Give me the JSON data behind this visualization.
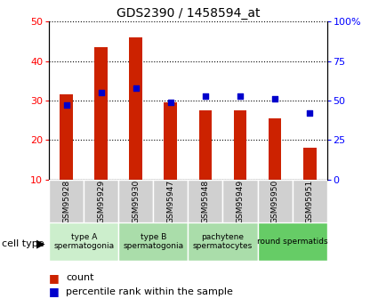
{
  "title": "GDS2390 / 1458594_at",
  "samples": [
    "GSM95928",
    "GSM95929",
    "GSM95930",
    "GSM95947",
    "GSM95948",
    "GSM95949",
    "GSM95950",
    "GSM95951"
  ],
  "counts": [
    31.5,
    43.5,
    46.0,
    29.5,
    27.5,
    27.5,
    25.5,
    18.0
  ],
  "percentiles": [
    47,
    55,
    58,
    49,
    53,
    53,
    51,
    42
  ],
  "ylim_left": [
    10,
    50
  ],
  "ylim_right": [
    0,
    100
  ],
  "yticks_left": [
    10,
    20,
    30,
    40,
    50
  ],
  "yticks_right": [
    0,
    25,
    50,
    75,
    100
  ],
  "bar_color": "#cc2200",
  "dot_color": "#0000cc",
  "groups": [
    {
      "label": "type A\nspermatogonia",
      "start": 0,
      "end": 1,
      "color": "#cceecc"
    },
    {
      "label": "type B\nspermatogonia",
      "start": 2,
      "end": 3,
      "color": "#aaddaa"
    },
    {
      "label": "pachytene\nspermatocytes",
      "start": 4,
      "end": 5,
      "color": "#aaddaa"
    },
    {
      "label": "round spermatids",
      "start": 6,
      "end": 7,
      "color": "#66cc66"
    }
  ],
  "sample_bg_color": "#d0d0d0",
  "bg_color": "#ffffff",
  "legend_count_color": "#cc2200",
  "legend_pct_color": "#0000cc"
}
